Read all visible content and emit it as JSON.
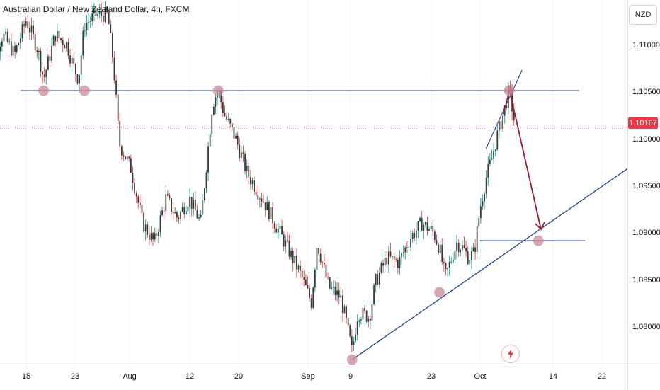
{
  "header": {
    "symbol_title": "Australian Dollar / New Zealand Dollar, 4h, FXCM"
  },
  "price_axis": {
    "currency": "NZD",
    "ticks": [
      "1.11000",
      "1.10500",
      "1.10000",
      "1.09500",
      "1.09000",
      "1.08500",
      "1.08000"
    ],
    "last_price": "1.10167"
  },
  "time_axis": {
    "labels": [
      "15",
      "23",
      "Aug",
      "12",
      "20",
      "Sep",
      "9",
      "23",
      "Oct",
      "14",
      "22"
    ]
  },
  "colors": {
    "up_candle": "#26a69a",
    "down_candle": "#ef5350",
    "candle_body": "#3a3a3a",
    "trend_line": "#1e3f9c",
    "arrow": "#9b1b30",
    "touch_marker": "#c98a96",
    "last_price": "#f23645"
  },
  "icons": {
    "flash": "flash-icon"
  },
  "chart_data": {
    "type": "candlestick",
    "interval": "4h",
    "ylim": [
      1.0775,
      1.1145
    ],
    "price_path": [
      [
        "Jul 8",
        1.0995
      ],
      [
        "Jul 9",
        1.1085
      ],
      [
        "Jul 11",
        1.111
      ],
      [
        "Jul 13",
        1.109
      ],
      [
        "Jul 15",
        1.1125
      ],
      [
        "Jul 17",
        1.1095
      ],
      [
        "Jul 18",
        1.1065
      ],
      [
        "Jul 20",
        1.111
      ],
      [
        "Jul 22",
        1.11
      ],
      [
        "Jul 23",
        1.108
      ],
      [
        "Jul 24",
        1.1065
      ],
      [
        "Jul 25",
        1.112
      ],
      [
        "Jul 27",
        1.113
      ],
      [
        "Jul 29",
        1.113
      ],
      [
        "Jul 30",
        1.108
      ],
      [
        "Jul 31",
        1.1
      ],
      [
        "Aug 2",
        1.0975
      ],
      [
        "Aug 4",
        1.092
      ],
      [
        "Aug 6",
        1.09
      ],
      [
        "Aug 8",
        1.0945
      ],
      [
        "Aug 10",
        1.0925
      ],
      [
        "Aug 12",
        1.0945
      ],
      [
        "Aug 14",
        1.092
      ],
      [
        "Aug 16",
        1.104
      ],
      [
        "Aug 17",
        1.1055
      ],
      [
        "Aug 18",
        1.103
      ],
      [
        "Aug 20",
        1.1005
      ],
      [
        "Aug 22",
        1.097
      ],
      [
        "Aug 25",
        1.094
      ],
      [
        "Aug 28",
        1.0905
      ],
      [
        "Aug 31",
        1.087
      ],
      [
        "Sep 2",
        1.084
      ],
      [
        "Sep 3",
        1.09
      ],
      [
        "Sep 5",
        1.0855
      ],
      [
        "Sep 7",
        1.0845
      ],
      [
        "Sep 8",
        1.082
      ],
      [
        "Sep 9",
        1.079
      ],
      [
        "Sep 10",
        1.083
      ],
      [
        "Sep 12",
        1.0825
      ],
      [
        "Sep 13",
        1.086
      ],
      [
        "Sep 15",
        1.0885
      ],
      [
        "Sep 17",
        1.088
      ],
      [
        "Sep 19",
        1.0905
      ],
      [
        "Sep 21",
        1.092
      ],
      [
        "Sep 23",
        1.091
      ],
      [
        "Sep 24",
        1.0895
      ],
      [
        "Sep 25",
        1.0865
      ],
      [
        "Sep 27",
        1.09
      ],
      [
        "Sep 28",
        1.0895
      ],
      [
        "Sep 29",
        1.0885
      ],
      [
        "Sep 30",
        1.089
      ],
      [
        "Oct 1",
        1.0935
      ],
      [
        "Oct 2",
        1.0965
      ],
      [
        "Oct 3",
        1.0985
      ],
      [
        "Oct 4",
        1.101
      ],
      [
        "Oct 5",
        1.103
      ],
      [
        "Oct 6",
        1.1055
      ],
      [
        "Oct 7",
        1.1017
      ]
    ],
    "annotations": {
      "resistance_level": 1.10535,
      "support_level": 1.0902,
      "current_price_line": 1.10167,
      "rising_trendline": [
        [
          "Sep 9",
          1.0782
        ],
        [
          "Oct 22",
          1.0965
        ]
      ],
      "wedge_upper": [
        [
          "Oct 2",
          1.0995
        ],
        [
          "Oct 7",
          1.107
        ]
      ],
      "projected_move": [
        [
          "Oct 6",
          1.1055
        ],
        [
          "Oct 10",
          1.0905
        ]
      ],
      "touch_points": [
        [
          "Jul 18",
          1.10535
        ],
        [
          "Jul 25",
          1.10535
        ],
        [
          "Aug 17",
          1.10535
        ],
        [
          "Sep 9",
          1.0782
        ],
        [
          "Sep 24",
          1.085
        ],
        [
          "Oct 6",
          1.10535
        ],
        [
          "Oct 11",
          1.0902
        ]
      ]
    }
  }
}
